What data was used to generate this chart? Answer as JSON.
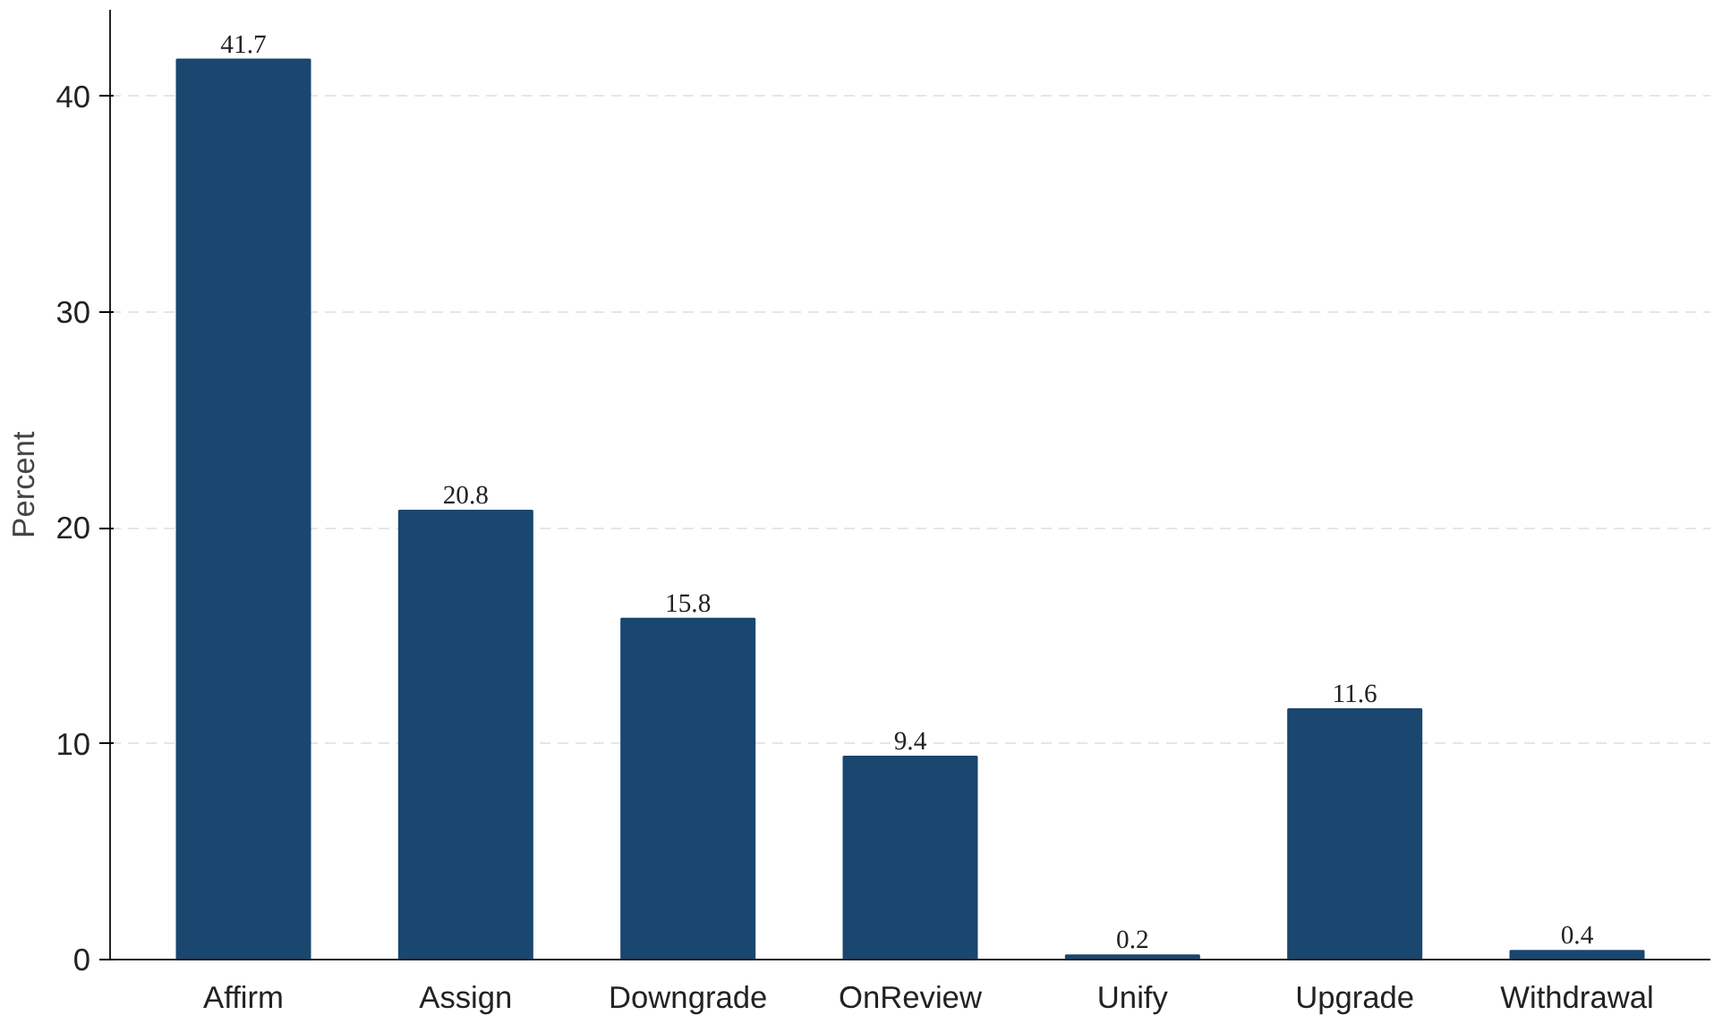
{
  "chart_data": {
    "type": "bar",
    "ylabel": "Percent",
    "categories": [
      "Affirm",
      "Assign",
      "Downgrade",
      "OnReview",
      "Unify",
      "Upgrade",
      "Withdrawal"
    ],
    "values": [
      41.7,
      20.8,
      15.8,
      9.4,
      0.2,
      11.6,
      0.4
    ],
    "color": "#1a476f",
    "ylim": [
      0,
      44
    ],
    "yticks": [
      0,
      10,
      20,
      30,
      40
    ],
    "grid": "y",
    "data_labels": true
  }
}
